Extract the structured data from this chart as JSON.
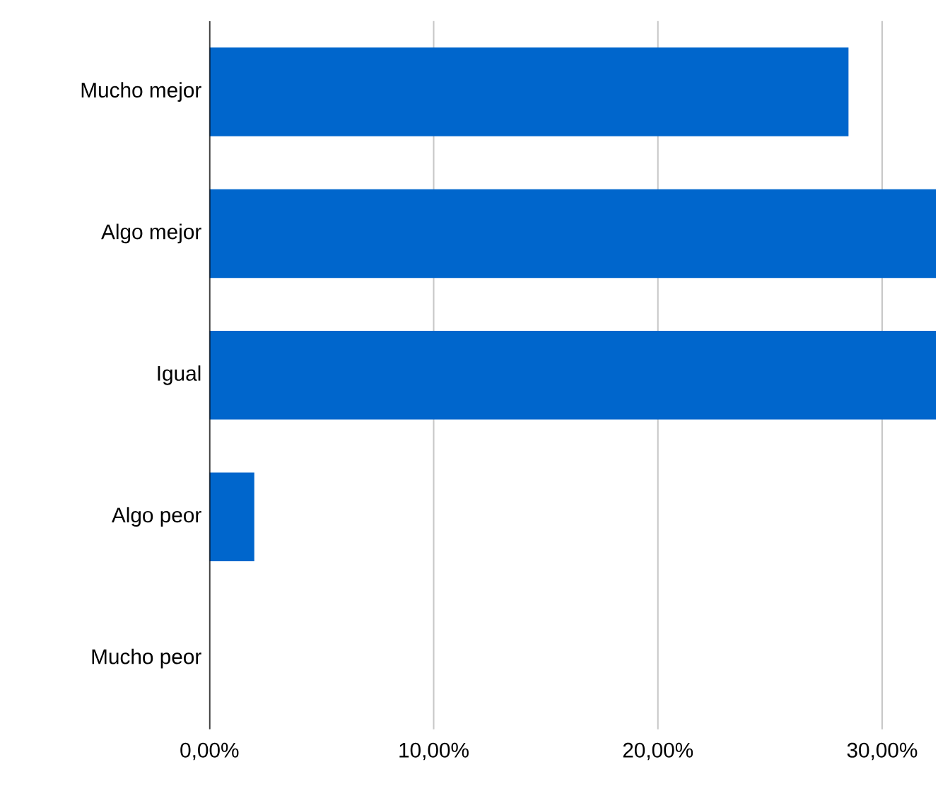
{
  "chart_data": {
    "type": "bar",
    "orientation": "horizontal",
    "categories": [
      "Mucho mejor",
      "Algo mejor",
      "Igual",
      "Algo peor",
      "Mucho peor"
    ],
    "values": [
      28.5,
      32.4,
      32.4,
      2.0,
      0
    ],
    "color": "#0066cc",
    "xlim": [
      0,
      32.4
    ],
    "xticks": [
      {
        "value": 0,
        "label": "0,00%"
      },
      {
        "value": 10,
        "label": "10,00%"
      },
      {
        "value": 20,
        "label": "20,00%"
      },
      {
        "value": 30,
        "label": "30,00%"
      }
    ],
    "grid": "x"
  }
}
